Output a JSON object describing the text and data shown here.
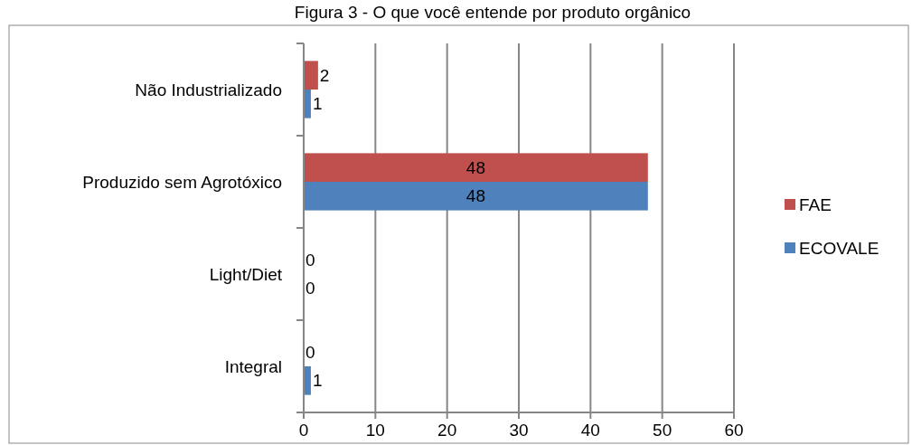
{
  "chart_data": {
    "type": "bar",
    "orientation": "horizontal",
    "title": "Figura 3 - O que você entende por produto orgânico",
    "categories": [
      "Não Industrializado",
      "Produzido sem Agrotóxico",
      "Light/Diet",
      "Integral"
    ],
    "series": [
      {
        "name": "FAE",
        "color": "#c0504d",
        "values": [
          2,
          48,
          0,
          0
        ]
      },
      {
        "name": "ECOVALE",
        "color": "#4f81bd",
        "values": [
          1,
          48,
          0,
          1
        ]
      }
    ],
    "xlim": [
      0,
      60
    ],
    "xticks": [
      0,
      10,
      20,
      30,
      40,
      50,
      60
    ],
    "grid": "x",
    "legend": "right",
    "data_labels": true
  }
}
